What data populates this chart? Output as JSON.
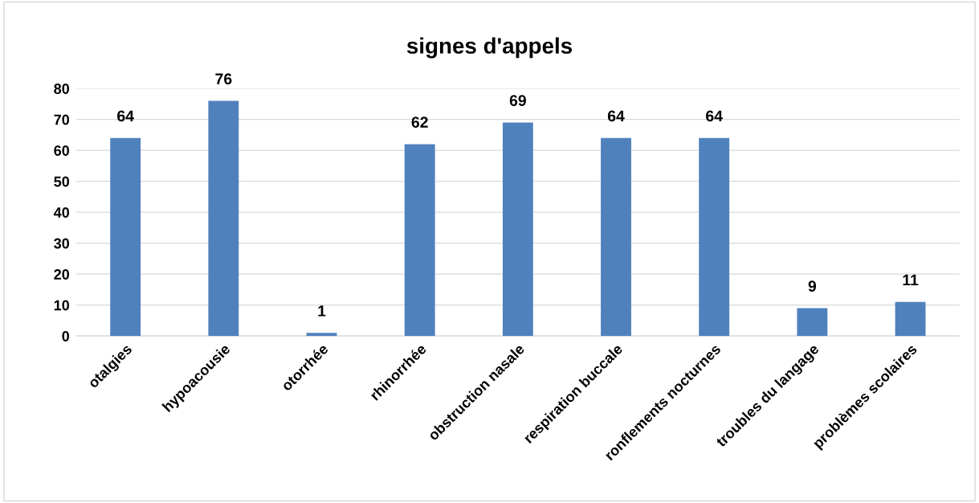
{
  "chart_data": {
    "type": "bar",
    "title": "signes d'appels",
    "categories": [
      "otalgies",
      "hypoacousie",
      "otorrhée",
      "rhinorrhée",
      "obstruction nasale",
      "respiration buccale",
      "ronflements nocturnes",
      "troubles du langage",
      "problèmes scolaires"
    ],
    "values": [
      64,
      76,
      1,
      62,
      69,
      64,
      64,
      9,
      11
    ],
    "color": "#4f81bd",
    "ylim": [
      0,
      80
    ],
    "yticks": [
      0,
      10,
      20,
      30,
      40,
      50,
      60,
      70,
      80
    ],
    "grid": "y",
    "data_labels": true
  }
}
